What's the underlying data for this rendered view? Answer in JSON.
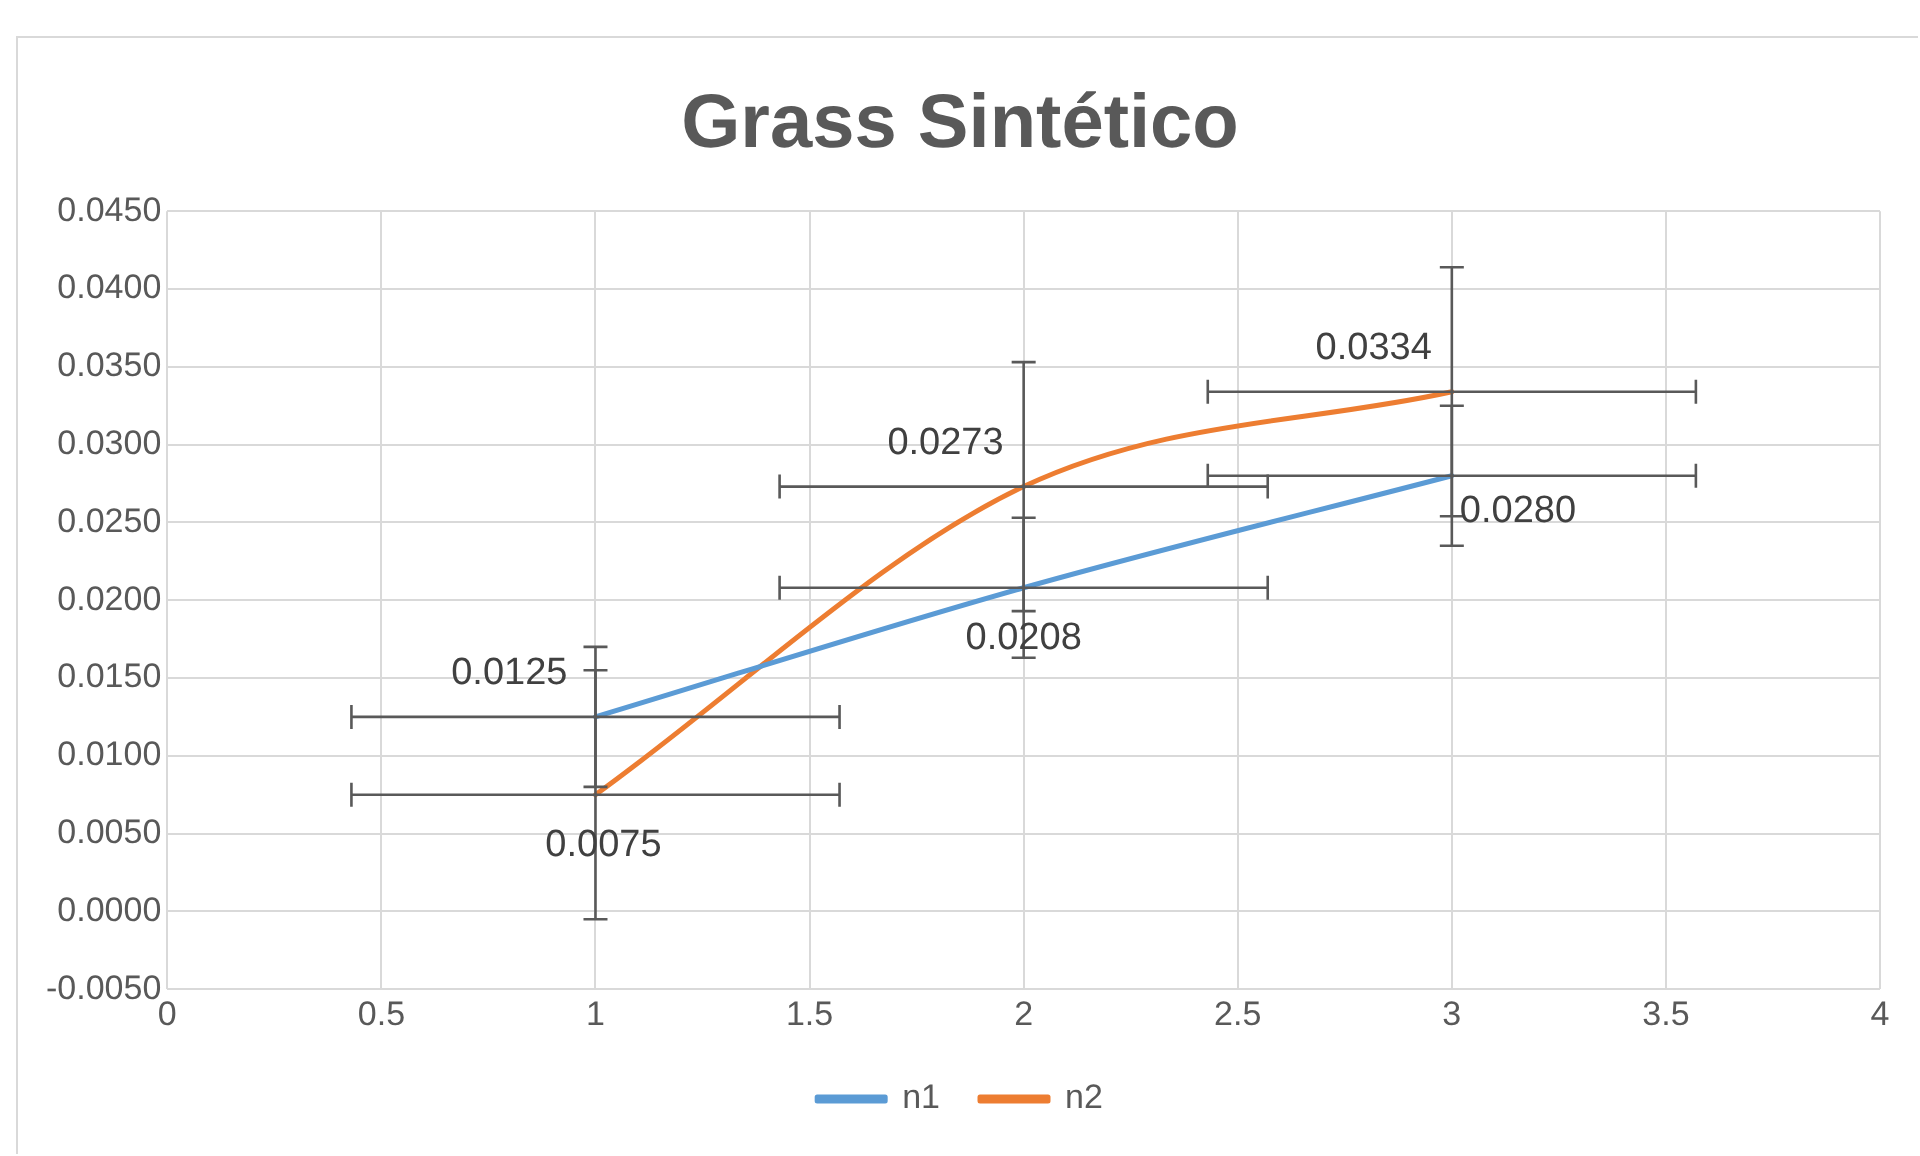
{
  "chart_data": {
    "type": "line",
    "title": "Grass Sintético",
    "x": [
      1,
      2,
      3
    ],
    "series": [
      {
        "name": "n1",
        "color": "#5b9bd5",
        "values": [
          0.0125,
          0.0208,
          0.028
        ],
        "value_labels": [
          "0.0125",
          "0.0208",
          "0.0280"
        ],
        "errors": [
          0.0045,
          0.0045,
          0.0045
        ],
        "xerrors": [
          0.57,
          0.57,
          0.57
        ]
      },
      {
        "name": "n2",
        "color": "#ed7d31",
        "values": [
          0.0075,
          0.0273,
          0.0334
        ],
        "value_labels": [
          "0.0075",
          "0.0273",
          "0.0334"
        ],
        "errors": [
          0.008,
          0.008,
          0.008
        ],
        "xerrors": [
          0.57,
          0.57,
          0.57
        ]
      }
    ],
    "xlim": [
      0,
      4
    ],
    "xticks": [
      0,
      0.5,
      1,
      1.5,
      2,
      2.5,
      3,
      3.5,
      4
    ],
    "ylim": [
      -0.005,
      0.045
    ],
    "yticks": [
      {
        "value": -0.005,
        "label": "-0.0050"
      },
      {
        "value": 0,
        "label": "0.0000"
      },
      {
        "value": 0.005,
        "label": "0.0050"
      },
      {
        "value": 0.01,
        "label": "0.0100"
      },
      {
        "value": 0.015,
        "label": "0.0150"
      },
      {
        "value": 0.02,
        "label": "0.0200"
      },
      {
        "value": 0.025,
        "label": "0.0250"
      },
      {
        "value": 0.03,
        "label": "0.0300"
      },
      {
        "value": 0.035,
        "label": "0.0350"
      },
      {
        "value": 0.04,
        "label": "0.0400"
      },
      {
        "value": 0.045,
        "label": "0.0450"
      }
    ],
    "grid": true,
    "legend": "bottom",
    "marker": "none",
    "line_style": "solid"
  }
}
